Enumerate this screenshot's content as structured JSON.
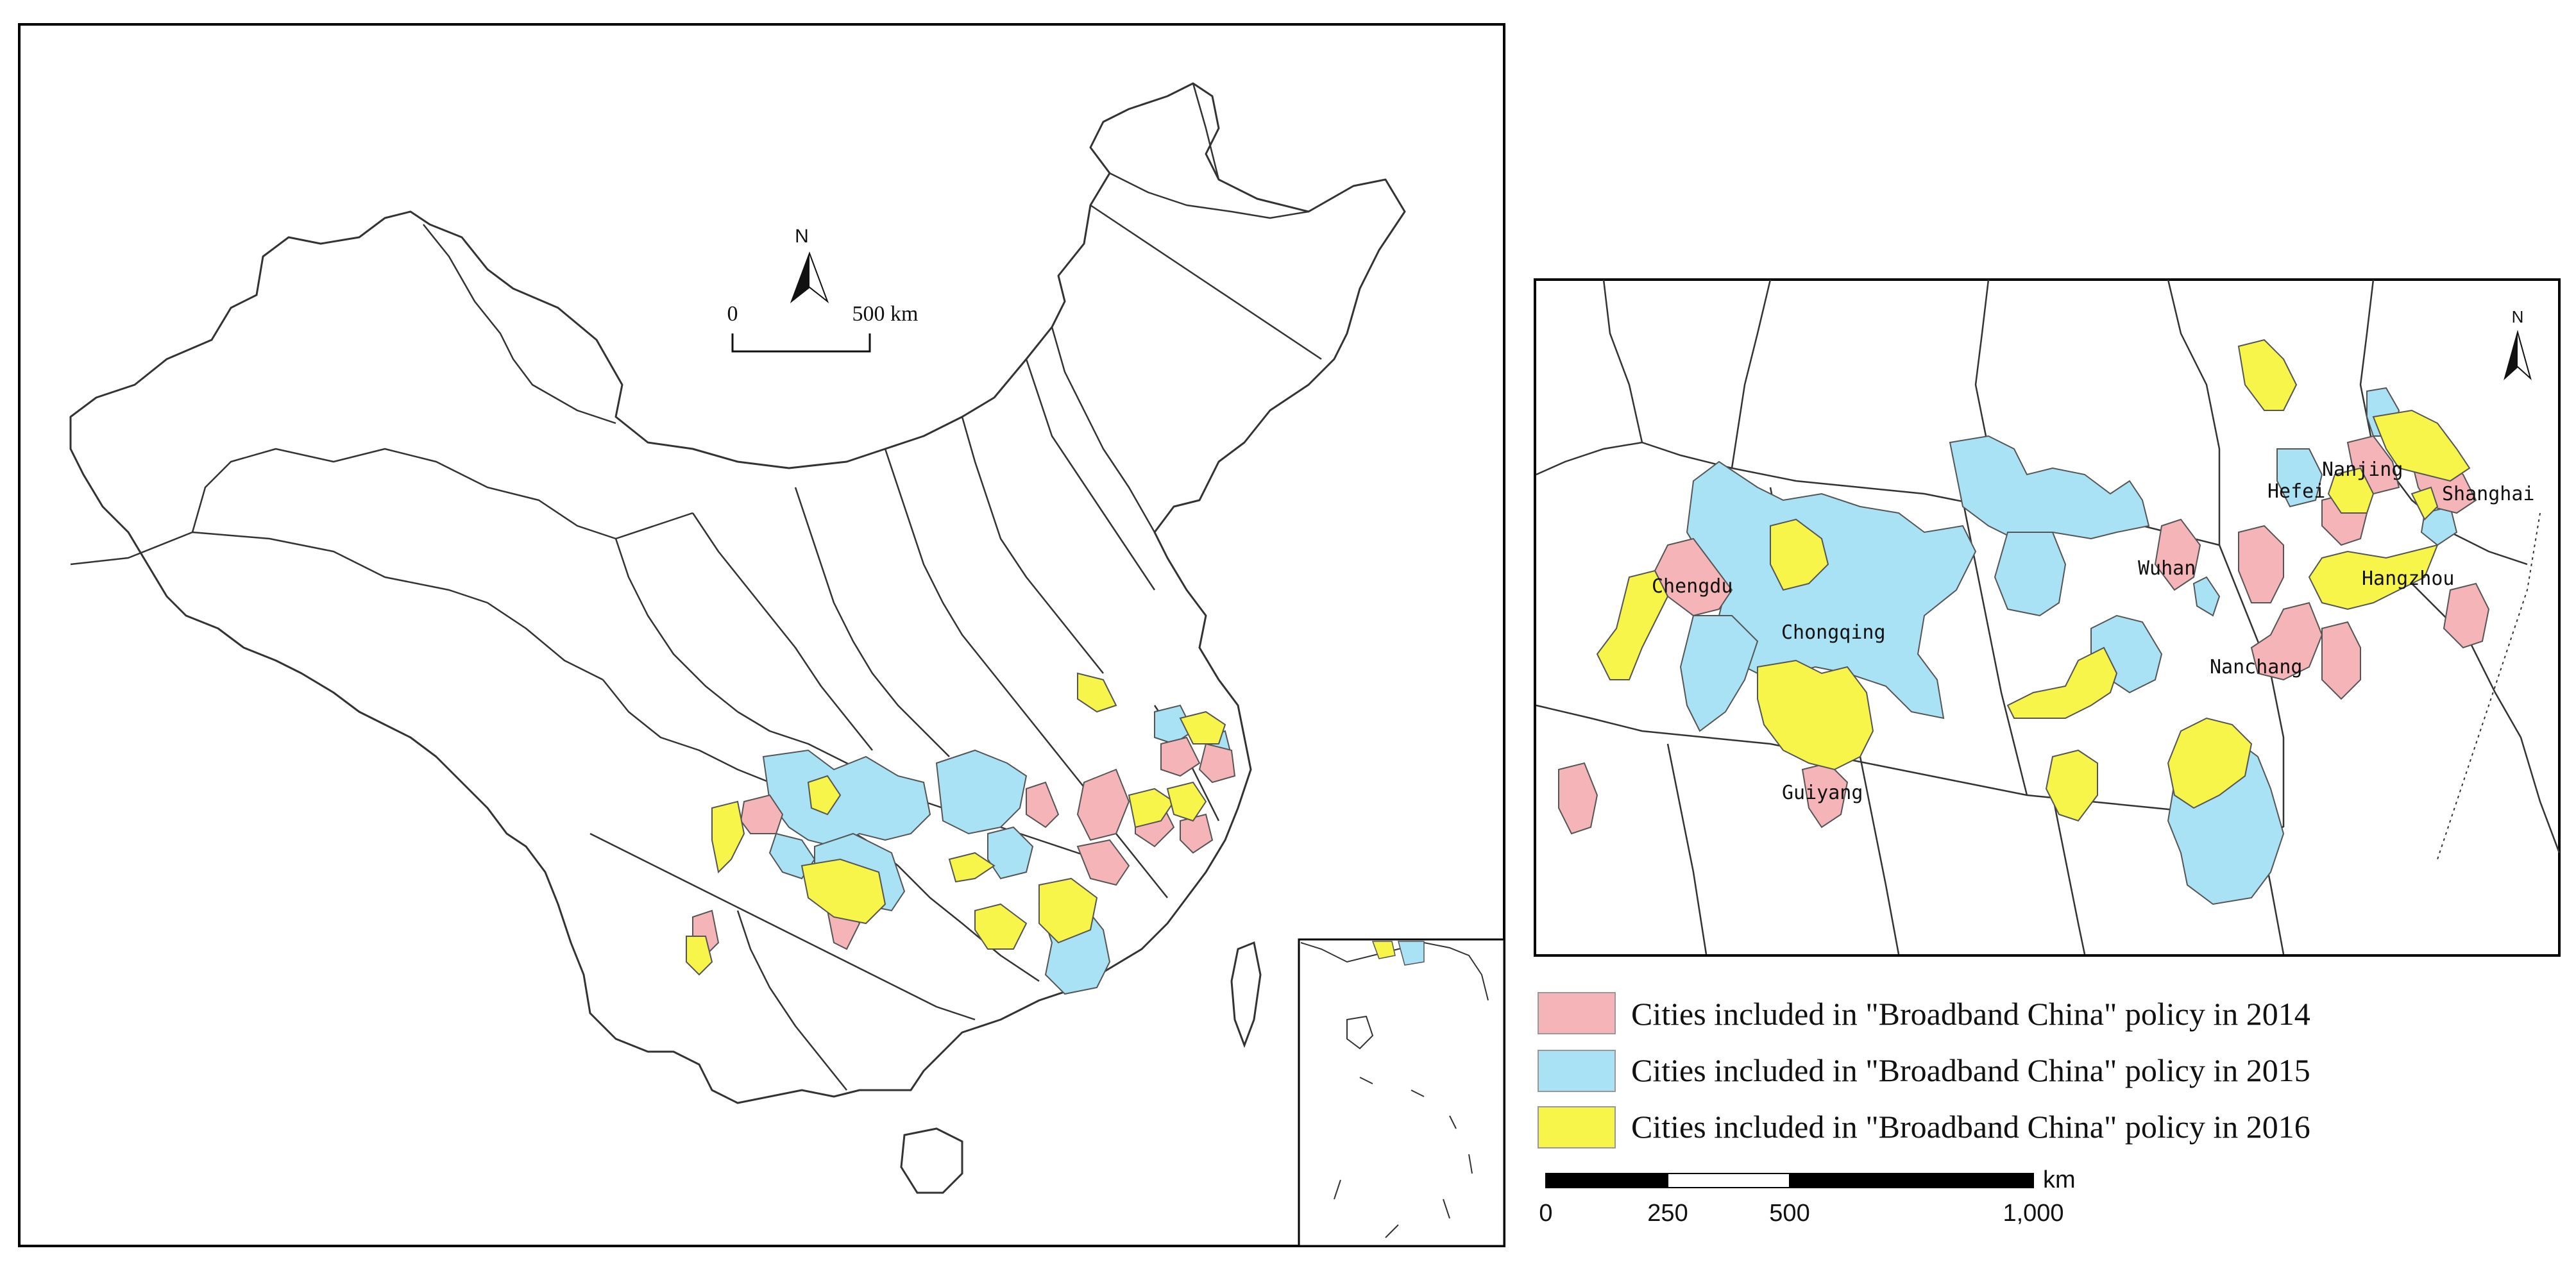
{
  "colors": {
    "y2014": "#f5b5b8",
    "y2015": "#a8e2f4",
    "y2016": "#f7f54a",
    "border": "#333333",
    "frame": "#000000"
  },
  "main_map": {
    "north": "N",
    "scalebar": {
      "zero": "0",
      "end": "500 km"
    }
  },
  "inset_map": {
    "north": "N",
    "cities": {
      "nanjing": "Nanjing",
      "hefei": "Hefei",
      "shanghai": "Shanghai",
      "hangzhou": "Hangzhou",
      "wuhan": "Wuhan",
      "chengdu": "Chengdu",
      "chongqing": "Chongqing",
      "nanchang": "Nanchang",
      "guiyang": "Guiyang"
    }
  },
  "legend": {
    "items": [
      {
        "label": "Cities included in \"Broadband China\" policy in 2014",
        "color": "#f5b5b8"
      },
      {
        "label": "Cities included in \"Broadband China\" policy in 2015",
        "color": "#a8e2f4"
      },
      {
        "label": "Cities included in \"Broadband China\" policy in 2016",
        "color": "#f7f54a"
      }
    ]
  },
  "scale_bar": {
    "ticks": [
      "0",
      "250",
      "500",
      "1,000"
    ],
    "unit": "km"
  }
}
